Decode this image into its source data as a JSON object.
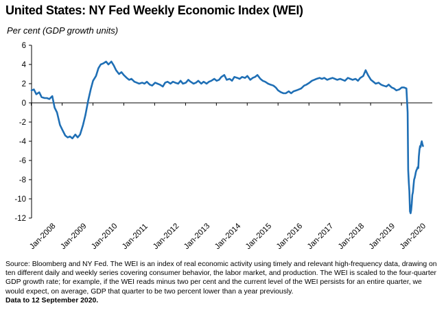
{
  "title": "United States: NY Fed Weekly Economic Index (WEI)",
  "ylabel": "Per cent (GDP growth units)",
  "footer": {
    "source": "Source: Bloomberg and NY Fed.  The WEI is an index of real economic activity using timely and relevant high-frequency data, drawing on ten different daily and weekly series covering consumer behavior, the labor market, and production. The WEI is scaled to the four-quarter GDP growth rate; for example, if the WEI reads minus two per cent and the current level of the WEI persists for an entire quarter, we would expect, on average, GDP that quarter to be two percent lower than a year previously.",
    "as_of": "Data to 12 September 2020."
  },
  "chart_data": {
    "type": "line",
    "title": "United States: NY Fed Weekly Economic Index (WEI)",
    "ylabel": "Per cent (GDP growth units)",
    "xlabel": "",
    "x_range": [
      "2008-01-05",
      "2020-12-31"
    ],
    "ylim": [
      -12,
      6
    ],
    "yticks": [
      6,
      4,
      2,
      0,
      -2,
      -4,
      -6,
      -8,
      -10,
      -12
    ],
    "xtick_labels": [
      "Jan-2008",
      "Jan-2009",
      "Jan-2010",
      "Jan-2011",
      "Jan-2012",
      "Jan-2013",
      "Jan-2014",
      "Jan-2015",
      "Jan-2016",
      "Jan-2017",
      "Jan-2018",
      "Jan-2019",
      "Jan-2020"
    ],
    "grid": false,
    "legend": "none",
    "line_color": "#1F6FB5",
    "series": [
      {
        "x": [
          "2008-01-05",
          "2008-02-02",
          "2008-03-01",
          "2008-04-05",
          "2008-05-03",
          "2008-06-07",
          "2008-07-05",
          "2008-08-02",
          "2008-09-06",
          "2008-10-04",
          "2008-11-01",
          "2008-12-06",
          "2009-01-03",
          "2009-02-07",
          "2009-03-07",
          "2009-04-04",
          "2009-05-02",
          "2009-06-06",
          "2009-07-04",
          "2009-08-01",
          "2009-09-05",
          "2009-10-03",
          "2009-11-07",
          "2009-12-05",
          "2010-01-02",
          "2010-02-06",
          "2010-03-06",
          "2010-04-03",
          "2010-05-01",
          "2010-06-05",
          "2010-07-03",
          "2010-08-07",
          "2010-09-04",
          "2010-10-02",
          "2010-11-06",
          "2010-12-04",
          "2011-01-01",
          "2011-02-05",
          "2011-03-05",
          "2011-04-02",
          "2011-05-07",
          "2011-06-04",
          "2011-07-02",
          "2011-08-06",
          "2011-09-03",
          "2011-10-01",
          "2011-11-05",
          "2011-12-03",
          "2012-01-07",
          "2012-02-04",
          "2012-03-03",
          "2012-04-07",
          "2012-05-05",
          "2012-06-02",
          "2012-07-07",
          "2012-08-04",
          "2012-09-01",
          "2012-10-06",
          "2012-11-03",
          "2012-12-01",
          "2013-01-05",
          "2013-02-02",
          "2013-03-02",
          "2013-04-06",
          "2013-05-04",
          "2013-06-01",
          "2013-07-06",
          "2013-08-03",
          "2013-09-07",
          "2013-10-05",
          "2013-11-02",
          "2013-12-07",
          "2014-01-04",
          "2014-02-01",
          "2014-03-01",
          "2014-04-05",
          "2014-05-03",
          "2014-06-07",
          "2014-07-05",
          "2014-08-02",
          "2014-09-06",
          "2014-10-04",
          "2014-11-01",
          "2014-12-06",
          "2015-01-03",
          "2015-02-07",
          "2015-03-07",
          "2015-04-04",
          "2015-05-02",
          "2015-06-06",
          "2015-07-04",
          "2015-08-01",
          "2015-09-05",
          "2015-10-03",
          "2015-11-07",
          "2015-12-05",
          "2016-01-02",
          "2016-02-06",
          "2016-03-05",
          "2016-04-02",
          "2016-05-07",
          "2016-06-04",
          "2016-07-02",
          "2016-08-06",
          "2016-09-03",
          "2016-10-01",
          "2016-11-05",
          "2016-12-03",
          "2017-01-07",
          "2017-02-04",
          "2017-03-04",
          "2017-04-01",
          "2017-05-06",
          "2017-06-03",
          "2017-07-01",
          "2017-08-05",
          "2017-09-02",
          "2017-10-07",
          "2017-11-04",
          "2017-12-02",
          "2018-01-06",
          "2018-02-03",
          "2018-03-03",
          "2018-04-07",
          "2018-05-05",
          "2018-06-02",
          "2018-07-07",
          "2018-08-04",
          "2018-09-01",
          "2018-10-06",
          "2018-11-03",
          "2018-12-01",
          "2019-01-05",
          "2019-02-02",
          "2019-03-02",
          "2019-04-06",
          "2019-05-04",
          "2019-06-01",
          "2019-07-06",
          "2019-08-03",
          "2019-09-07",
          "2019-10-05",
          "2019-11-02",
          "2019-12-07",
          "2020-01-04",
          "2020-02-01",
          "2020-02-29",
          "2020-03-14",
          "2020-03-21",
          "2020-03-28",
          "2020-04-04",
          "2020-04-11",
          "2020-04-18",
          "2020-04-25",
          "2020-05-02",
          "2020-05-09",
          "2020-05-16",
          "2020-05-23",
          "2020-05-30",
          "2020-06-06",
          "2020-06-13",
          "2020-06-20",
          "2020-06-27",
          "2020-07-04",
          "2020-07-11",
          "2020-07-18",
          "2020-07-25",
          "2020-08-01",
          "2020-08-08",
          "2020-08-15",
          "2020-08-22",
          "2020-08-29",
          "2020-09-05",
          "2020-09-12"
        ],
        "y": [
          1.3,
          1.4,
          0.9,
          1.1,
          0.6,
          0.5,
          0.5,
          0.4,
          0.7,
          -0.5,
          -1.0,
          -2.3,
          -2.8,
          -3.4,
          -3.6,
          -3.5,
          -3.7,
          -3.3,
          -3.6,
          -3.3,
          -2.3,
          -1.3,
          0.3,
          1.4,
          2.3,
          2.8,
          3.6,
          4.0,
          4.1,
          4.3,
          4.0,
          4.3,
          3.9,
          3.4,
          3.0,
          3.2,
          2.9,
          2.6,
          2.4,
          2.5,
          2.2,
          2.1,
          2.0,
          2.1,
          2.0,
          2.2,
          1.9,
          1.8,
          2.1,
          2.0,
          1.9,
          1.7,
          2.1,
          2.2,
          2.0,
          2.2,
          2.1,
          2.0,
          2.3,
          2.0,
          2.1,
          2.4,
          2.2,
          2.0,
          2.1,
          2.3,
          2.0,
          2.2,
          2.0,
          2.2,
          2.3,
          2.5,
          2.3,
          2.4,
          2.7,
          2.9,
          2.4,
          2.5,
          2.3,
          2.7,
          2.6,
          2.5,
          2.7,
          2.6,
          2.8,
          2.4,
          2.6,
          2.7,
          2.9,
          2.5,
          2.3,
          2.2,
          2.0,
          1.9,
          1.8,
          1.6,
          1.3,
          1.1,
          1.0,
          1.0,
          1.2,
          1.0,
          1.2,
          1.3,
          1.4,
          1.5,
          1.8,
          1.9,
          2.1,
          2.3,
          2.4,
          2.5,
          2.6,
          2.5,
          2.6,
          2.4,
          2.5,
          2.6,
          2.5,
          2.4,
          2.5,
          2.4,
          2.3,
          2.6,
          2.5,
          2.4,
          2.5,
          2.3,
          2.6,
          2.8,
          3.4,
          2.9,
          2.4,
          2.2,
          2.0,
          2.1,
          1.9,
          1.8,
          1.7,
          1.9,
          1.6,
          1.5,
          1.3,
          1.4,
          1.6,
          1.6,
          1.5,
          -1.0,
          -7.0,
          -8.3,
          -9.2,
          -11.3,
          -11.5,
          -11.2,
          -10.5,
          -9.6,
          -9.3,
          -8.6,
          -8.0,
          -7.8,
          -7.5,
          -7.2,
          -7.0,
          -6.9,
          -6.7,
          -6.8,
          -5.6,
          -4.9,
          -4.5,
          -4.6,
          -4.2,
          -4.0,
          -4.3,
          -4.5
        ]
      }
    ]
  }
}
